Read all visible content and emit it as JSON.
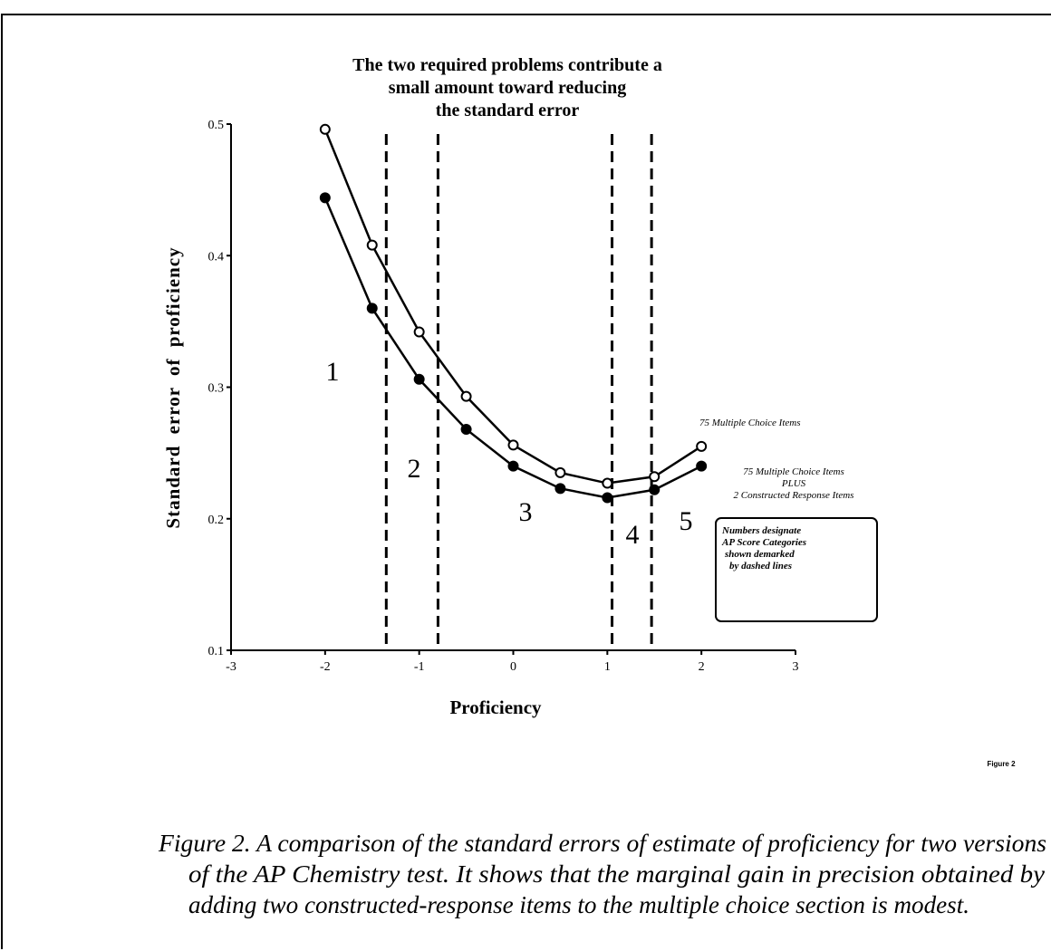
{
  "chart_data": {
    "type": "line",
    "title": [
      "The two required problems contribute a",
      "small amount toward reducing",
      "the standard error"
    ],
    "x_label": "Proficiency",
    "y_label": "Standard error of proficiency",
    "x": [
      -2,
      -1.5,
      -1,
      -0.5,
      0,
      0.5,
      1,
      1.5,
      2
    ],
    "series": [
      {
        "name": "75 Multiple Choice Items",
        "color": "#000000",
        "marker": "open",
        "values": [
          0.496,
          0.408,
          0.342,
          0.293,
          0.256,
          0.235,
          0.227,
          0.232,
          0.255
        ]
      },
      {
        "name": [
          "75 Multiple Choice Items",
          "PLUS",
          "2 Constructed Response Items"
        ],
        "color": "#000000",
        "marker": "filled",
        "values": [
          0.444,
          0.36,
          0.306,
          0.268,
          0.24,
          0.223,
          0.216,
          0.222,
          0.24
        ]
      }
    ],
    "cutoffs": [
      -1.35,
      -0.8,
      1.05,
      1.47
    ],
    "region_labels": [
      "1",
      "2",
      "3",
      "4",
      "5"
    ],
    "note": [
      "Numbers designate",
      "AP Score Categories",
      "shown demarked",
      "by dashed lines"
    ],
    "xlim": [
      -3,
      3
    ],
    "xticks": [
      -3,
      -2,
      -1,
      0,
      1,
      2,
      3
    ],
    "ylim": [
      0.1,
      0.5
    ],
    "yticks": [
      0.1,
      0.2,
      0.3,
      0.4,
      0.5
    ],
    "figure_tag": "Figure 2",
    "caption": [
      "Figure 2. A comparison of the standard errors of estimate of proficiency for two versions",
      "of the AP Chemistry test. It shows that the marginal gain in precision obtained by",
      "adding two constructed-response items to the multiple choice section is modest."
    ]
  }
}
